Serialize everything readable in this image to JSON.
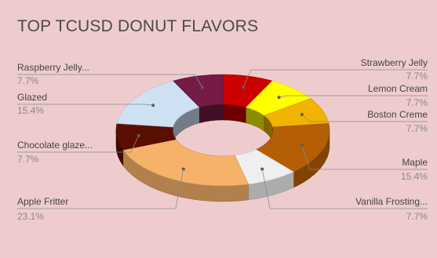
{
  "chart_data": {
    "type": "pie",
    "variant": "3d-donut",
    "title": "TOP TCUSD DONUT FLAVORS",
    "background": "#eeccce",
    "slices": [
      {
        "label": "Strawberry Jelly",
        "value": 7.7,
        "percent_label": "7.7%",
        "color": "#cc0000",
        "label_side": "right"
      },
      {
        "label": "Lemon Cream",
        "value": 7.7,
        "percent_label": "7.7%",
        "color": "#ffff00",
        "label_side": "right"
      },
      {
        "label": "Boston Creme",
        "value": 7.7,
        "percent_label": "7.7%",
        "color": "#f1b400",
        "label_side": "right"
      },
      {
        "label": "Maple",
        "value": 15.4,
        "percent_label": "15.4%",
        "color": "#b45f06",
        "label_side": "right"
      },
      {
        "label": "Vanilla Frosting...",
        "value": 7.7,
        "percent_label": "7.7%",
        "color": "#efefef",
        "label_side": "right"
      },
      {
        "label": "Apple Fritter",
        "value": 23.1,
        "percent_label": "23.1%",
        "color": "#f6b26b",
        "label_side": "left"
      },
      {
        "label": "Chocolate glaze...",
        "value": 7.7,
        "percent_label": "7.7%",
        "color": "#5b0f00",
        "label_side": "left"
      },
      {
        "label": "Glazed",
        "value": 15.4,
        "percent_label": "15.4%",
        "color": "#cfe2f3",
        "label_side": "left"
      },
      {
        "label": "Raspberry Jelly...",
        "value": 7.7,
        "percent_label": "7.7%",
        "color": "#741b47",
        "label_side": "left"
      }
    ]
  }
}
